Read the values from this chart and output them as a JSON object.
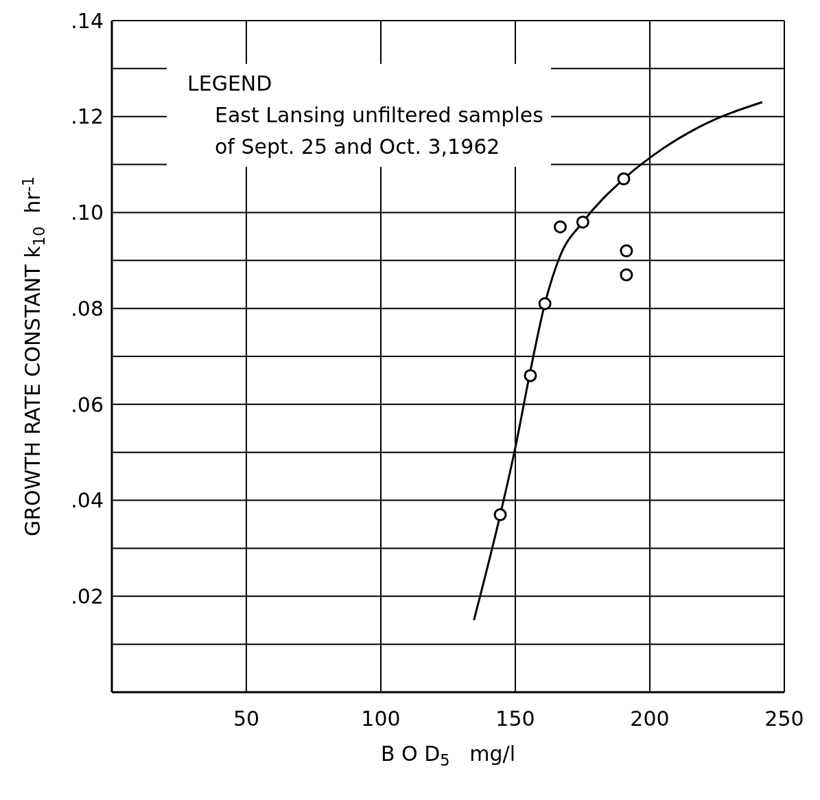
{
  "chart_data": {
    "type": "scatter",
    "xlabel": "B O D$_{5}$   mg/l",
    "ylabel": "GROWTH RATE CONSTANT k$_{10}$  hr$^{-1}$",
    "annotations": [
      "LEGEND",
      "East Lansing unfiltered samples of Sept. 25 and Oct. 3,1962"
    ],
    "series": [
      {
        "color": "#000000",
        "marker": "circle",
        "x": [
          144.4,
          155.6,
          161,
          166.7,
          175.1,
          190.3,
          191.3,
          191.3
        ],
        "values": [
          0.037,
          0.066,
          0.081,
          0.097,
          0.098,
          0.107,
          0.092,
          0.087
        ]
      },
      {
        "type": "line",
        "color": "#000000",
        "marker": "none",
        "x": [
          134.6,
          144.4,
          150,
          155.6,
          161,
          166.7,
          175.1,
          190.3,
          204,
          219,
          241.8
        ],
        "values": [
          0.015,
          0.037,
          0.051,
          0.067,
          0.081,
          0.091,
          0.098,
          0.107,
          0.113,
          0.118,
          0.123
        ]
      }
    ],
    "xlim": [
      0,
      250
    ],
    "xticks": [
      50,
      100,
      150,
      200,
      250
    ],
    "ylim": [
      0,
      0.14
    ],
    "yticks": [
      {
        "value": 0.01,
        "label": null
      },
      {
        "value": 0.02,
        "label": ".02"
      },
      {
        "value": 0.03,
        "label": null
      },
      {
        "value": 0.04,
        "label": ".04"
      },
      {
        "value": 0.05,
        "label": null
      },
      {
        "value": 0.06,
        "label": ".06"
      },
      {
        "value": 0.07,
        "label": null
      },
      {
        "value": 0.08,
        "label": ".08"
      },
      {
        "value": 0.09,
        "label": null
      },
      {
        "value": 0.1,
        "label": ".10"
      },
      {
        "value": 0.11,
        "label": null
      },
      {
        "value": 0.12,
        "label": ".12"
      },
      {
        "value": 0.13,
        "label": null
      },
      {
        "value": 0.14,
        "label": ".14"
      }
    ],
    "grid": true
  }
}
